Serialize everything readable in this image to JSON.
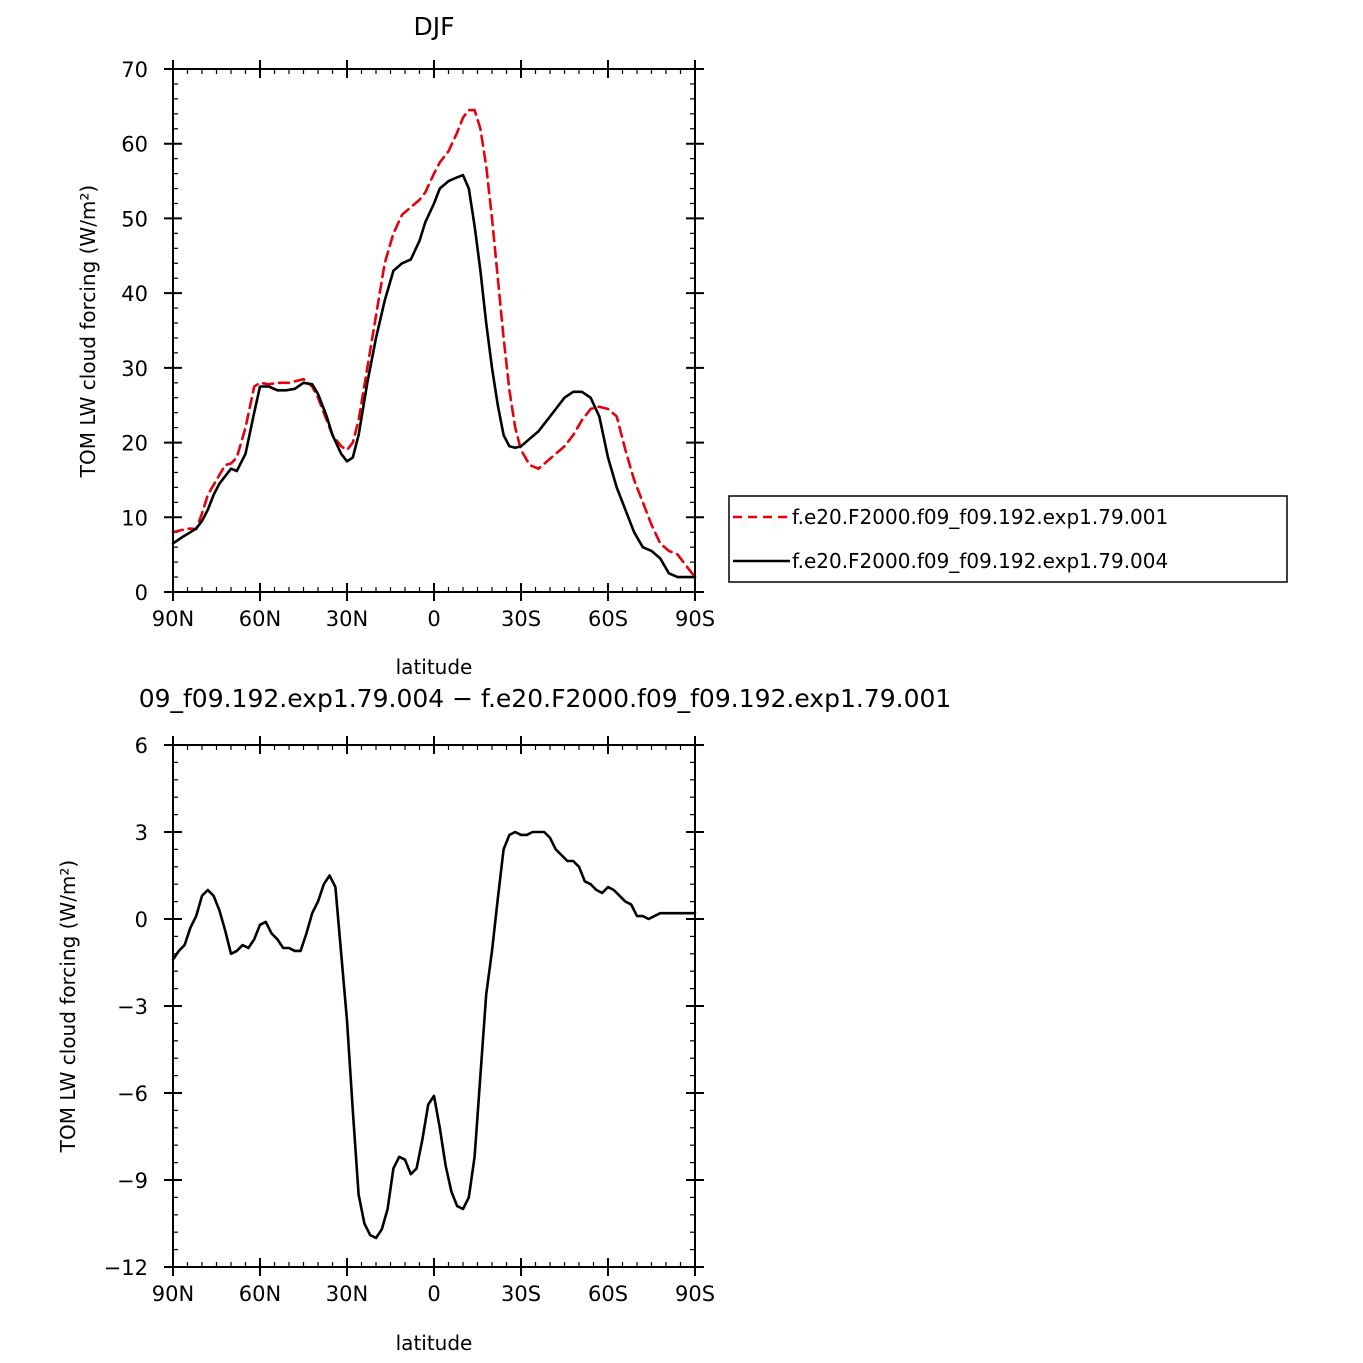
{
  "chart_data": [
    {
      "type": "line",
      "title": "DJF",
      "xlabel": "latitude",
      "ylabel": "TOM LW cloud forcing (W/m²)",
      "xlim": [
        -90,
        90
      ],
      "ylim": [
        0,
        70
      ],
      "x_ticks": [
        -90,
        -60,
        -30,
        0,
        30,
        60,
        90
      ],
      "x_tick_labels": [
        "90N",
        "60N",
        "30N",
        "0",
        "30S",
        "60S",
        "90S"
      ],
      "y_ticks": [
        0,
        10,
        20,
        30,
        40,
        50,
        60,
        70
      ],
      "y_tick_labels": [
        "0",
        "10",
        "20",
        "30",
        "40",
        "50",
        "60",
        "70"
      ],
      "legend_position": "right",
      "series": [
        {
          "name": "f.e20.F2000.f09_f09.192.exp1.79.001",
          "color": "#e8000b",
          "dash": "dashed",
          "x": [
            -90,
            -87,
            -84,
            -82,
            -80,
            -78,
            -75,
            -72,
            -70,
            -68,
            -65,
            -62,
            -60,
            -57,
            -54,
            -50,
            -45,
            -42,
            -40,
            -37,
            -35,
            -32,
            -30,
            -28,
            -26,
            -23,
            -20,
            -17,
            -14,
            -11,
            -8,
            -5,
            -3,
            0,
            2,
            5,
            8,
            10,
            12,
            14,
            16,
            18,
            20,
            22,
            24,
            26,
            28,
            30,
            33,
            36,
            39,
            42,
            45,
            48,
            51,
            54,
            57,
            60,
            63,
            66,
            69,
            72,
            75,
            78,
            81,
            84,
            87,
            90
          ],
          "y": [
            8,
            8.3,
            8.5,
            8.4,
            10.5,
            13,
            15,
            17,
            17.2,
            18,
            22,
            27.5,
            28,
            27.8,
            28,
            28,
            28.5,
            27.5,
            26,
            23,
            21,
            19.5,
            19,
            20,
            23,
            30,
            37,
            44,
            48,
            50.5,
            51.5,
            52.5,
            53.5,
            56,
            57.5,
            59,
            61.5,
            63.5,
            64.5,
            64.5,
            62,
            57,
            50,
            42,
            34,
            27,
            22,
            19,
            17,
            16.5,
            17.5,
            18.5,
            19.5,
            21,
            23,
            24.5,
            24.8,
            24.5,
            23.5,
            19,
            15,
            12,
            9,
            6.5,
            5.5,
            5,
            3.5,
            2
          ]
        },
        {
          "name": "f.e20.F2000.f09_f09.192.exp1.79.004",
          "color": "#000000",
          "dash": "solid",
          "x": [
            -90,
            -87,
            -84,
            -82,
            -80,
            -78,
            -76,
            -74,
            -72,
            -70,
            -68,
            -65,
            -62,
            -60,
            -57,
            -54,
            -51,
            -48,
            -45,
            -42,
            -40,
            -37,
            -35,
            -32,
            -30,
            -28,
            -26,
            -23,
            -20,
            -17,
            -14,
            -11,
            -8,
            -5,
            -3,
            0,
            2,
            5,
            8,
            10,
            12,
            14,
            16,
            18,
            20,
            22,
            24,
            26,
            28,
            30,
            33,
            36,
            39,
            42,
            45,
            48,
            51,
            54,
            57,
            60,
            63,
            66,
            69,
            72,
            75,
            78,
            81,
            84,
            87,
            90
          ],
          "y": [
            6.5,
            7.3,
            8,
            8.5,
            9.5,
            11,
            13,
            14.5,
            15.5,
            16.5,
            16.2,
            18.5,
            24,
            27.5,
            27.5,
            27,
            27,
            27.2,
            28,
            27.8,
            26.5,
            23.5,
            21,
            18.5,
            17.5,
            18,
            21,
            28,
            34,
            39,
            43,
            44,
            44.5,
            47,
            49.5,
            52,
            54,
            55,
            55.5,
            55.8,
            54,
            49,
            43,
            36,
            30,
            25,
            21,
            19.5,
            19.3,
            19.5,
            20.5,
            21.5,
            23,
            24.5,
            26,
            26.8,
            26.8,
            26,
            23.5,
            18,
            14,
            11,
            8,
            6,
            5.5,
            4.5,
            2.5,
            2,
            2,
            2
          ]
        }
      ]
    },
    {
      "type": "line",
      "title": "09_f09.192.exp1.79.004 − f.e20.F2000.f09_f09.192.exp1.79.001",
      "xlabel": "latitude",
      "ylabel": "TOM LW cloud forcing (W/m²)",
      "xlim": [
        -90,
        90
      ],
      "ylim": [
        -12,
        6
      ],
      "x_ticks": [
        -90,
        -60,
        -30,
        0,
        30,
        60,
        90
      ],
      "x_tick_labels": [
        "90N",
        "60N",
        "30N",
        "0",
        "30S",
        "60S",
        "90S"
      ],
      "y_ticks": [
        -12,
        -9,
        -6,
        -3,
        0,
        3,
        6
      ],
      "y_tick_labels": [
        "−12",
        "−9",
        "−6",
        "−3",
        "0",
        "3",
        "6"
      ],
      "series": [
        {
          "color": "#000000",
          "dash": "solid",
          "x": [
            -90,
            -88,
            -86,
            -84,
            -82,
            -80,
            -78,
            -76,
            -74,
            -72,
            -70,
            -68,
            -66,
            -64,
            -62,
            -60,
            -58,
            -56,
            -54,
            -52,
            -50,
            -48,
            -46,
            -44,
            -42,
            -40,
            -38,
            -36,
            -34,
            -32,
            -30,
            -28,
            -26,
            -24,
            -22,
            -20,
            -18,
            -16,
            -14,
            -12,
            -10,
            -8,
            -6,
            -4,
            -2,
            0,
            2,
            4,
            6,
            8,
            10,
            12,
            14,
            16,
            18,
            20,
            22,
            24,
            26,
            28,
            30,
            32,
            34,
            36,
            38,
            40,
            42,
            44,
            46,
            48,
            50,
            52,
            54,
            56,
            58,
            60,
            62,
            64,
            66,
            68,
            70,
            72,
            74,
            76,
            78,
            80,
            82,
            84,
            86,
            88,
            90
          ],
          "y": [
            -1.4,
            -1.1,
            -0.9,
            -0.3,
            0.1,
            0.8,
            1,
            0.8,
            0.3,
            -0.4,
            -1.2,
            -1.1,
            -0.9,
            -1,
            -0.7,
            -0.2,
            -0.1,
            -0.5,
            -0.7,
            -1,
            -1,
            -1.1,
            -1.1,
            -0.5,
            0.2,
            0.6,
            1.2,
            1.5,
            1.1,
            -1.2,
            -3.5,
            -6.6,
            -9.5,
            -10.5,
            -10.9,
            -11,
            -10.7,
            -10,
            -8.6,
            -8.2,
            -8.3,
            -8.8,
            -8.6,
            -7.6,
            -6.4,
            -6.1,
            -7.2,
            -8.5,
            -9.4,
            -9.9,
            -10,
            -9.6,
            -8.2,
            -5.4,
            -2.6,
            -1.1,
            0.7,
            2.4,
            2.9,
            3,
            2.9,
            2.9,
            3,
            3,
            3,
            2.8,
            2.4,
            2.2,
            2,
            2,
            1.8,
            1.3,
            1.2,
            1,
            0.9,
            1.1,
            1,
            0.8,
            0.6,
            0.5,
            0.1,
            0.1,
            0,
            0.1,
            0.2,
            0.2,
            0.2,
            0.2,
            0.2,
            0.2,
            0.2
          ]
        }
      ]
    }
  ]
}
